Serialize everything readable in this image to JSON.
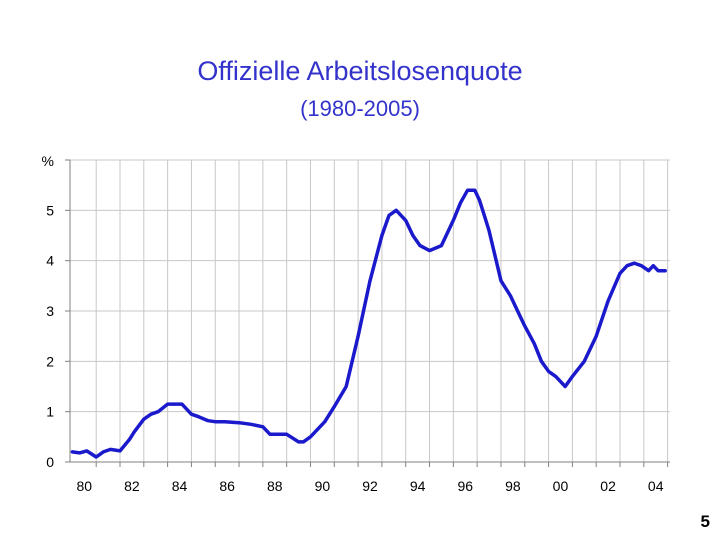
{
  "chart_data": {
    "type": "line",
    "title": "Offizielle Arbeitslosenquote",
    "subtitle": "(1980-2005)",
    "ylabel": "%",
    "xlabel": "",
    "ylim": [
      0,
      6
    ],
    "xlim": [
      1979.9,
      2005.1
    ],
    "yticks": [
      0,
      1,
      2,
      3,
      4,
      5
    ],
    "xticks": [
      {
        "value": 1980.5,
        "label": "80"
      },
      {
        "value": 1982.5,
        "label": "82"
      },
      {
        "value": 1984.5,
        "label": "84"
      },
      {
        "value": 1986.5,
        "label": "86"
      },
      {
        "value": 1988.5,
        "label": "88"
      },
      {
        "value": 1990.5,
        "label": "90"
      },
      {
        "value": 1992.5,
        "label": "92"
      },
      {
        "value": 1994.5,
        "label": "94"
      },
      {
        "value": 1996.5,
        "label": "96"
      },
      {
        "value": 1998.5,
        "label": "98"
      },
      {
        "value": 2000.5,
        "label": "00"
      },
      {
        "value": 2002.5,
        "label": "02"
      },
      {
        "value": 2004.5,
        "label": "04"
      }
    ],
    "grid": true,
    "legend": "none",
    "colors": {
      "title": "#3333cc",
      "line": "#1a1acc",
      "grid": "#c8c8c8",
      "axis": "#808080"
    },
    "series": [
      {
        "name": "",
        "x": [
          1980.0,
          1980.3,
          1980.6,
          1981.0,
          1981.3,
          1981.6,
          1982.0,
          1982.4,
          1982.6,
          1983.0,
          1983.3,
          1983.6,
          1984.0,
          1984.3,
          1984.6,
          1985.0,
          1985.3,
          1985.7,
          1986.0,
          1986.4,
          1987.0,
          1987.5,
          1988.0,
          1988.3,
          1988.6,
          1989.0,
          1989.5,
          1989.7,
          1990.0,
          1990.3,
          1990.6,
          1991.0,
          1991.5,
          1992.0,
          1992.5,
          1993.0,
          1993.3,
          1993.6,
          1994.0,
          1994.3,
          1994.6,
          1995.0,
          1995.5,
          1996.0,
          1996.3,
          1996.6,
          1996.9,
          1997.1,
          1997.3,
          1997.5,
          1998.0,
          1998.4,
          1998.7,
          1999.0,
          1999.4,
          1999.7,
          2000.0,
          2000.3,
          2000.7,
          2001.0,
          2001.5,
          2002.0,
          2002.5,
          2003.0,
          2003.3,
          2003.6,
          2003.9,
          2004.2,
          2004.4,
          2004.6,
          2004.9
        ],
        "values": [
          0.2,
          0.18,
          0.22,
          0.1,
          0.2,
          0.25,
          0.22,
          0.45,
          0.6,
          0.85,
          0.95,
          1.0,
          1.15,
          1.15,
          1.15,
          0.95,
          0.9,
          0.82,
          0.8,
          0.8,
          0.78,
          0.75,
          0.7,
          0.55,
          0.55,
          0.55,
          0.4,
          0.4,
          0.5,
          0.65,
          0.8,
          1.1,
          1.5,
          2.5,
          3.6,
          4.5,
          4.9,
          5.0,
          4.8,
          4.5,
          4.3,
          4.2,
          4.3,
          4.8,
          5.15,
          5.4,
          5.4,
          5.2,
          4.9,
          4.6,
          3.6,
          3.3,
          3.0,
          2.7,
          2.35,
          2.0,
          1.8,
          1.7,
          1.5,
          1.7,
          2.0,
          2.5,
          3.2,
          3.75,
          3.9,
          3.95,
          3.9,
          3.8,
          3.9,
          3.8,
          3.8
        ]
      }
    ]
  },
  "page_number": "5"
}
